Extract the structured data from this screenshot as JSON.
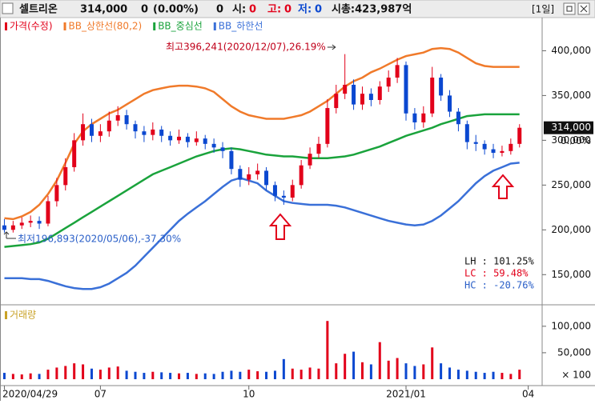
{
  "header": {
    "name": "셀트리온",
    "price": "314,000",
    "change": "0",
    "change_pct": "(0.00%)",
    "volume": "0",
    "open_label": "시:",
    "open_value": "0",
    "high_label": "고:",
    "high_value": "0",
    "low_label": "저:",
    "low_value": "0",
    "market_cap": "시총:423,987억",
    "period": "[1일]"
  },
  "chart_data": [
    {
      "type": "candlestick",
      "price_name": "가격(수정)",
      "up_color": "#e2001a",
      "down_color": "#0b48d0",
      "categories": [
        "2020/04/29",
        null,
        null,
        null,
        null,
        null,
        null,
        null,
        null,
        null,
        null,
        "07",
        null,
        null,
        null,
        null,
        null,
        null,
        null,
        null,
        null,
        null,
        null,
        null,
        null,
        null,
        null,
        null,
        "10",
        null,
        null,
        null,
        null,
        null,
        null,
        null,
        null,
        null,
        null,
        null,
        null,
        null,
        null,
        null,
        null,
        null,
        "2021/01",
        null,
        null,
        null,
        null,
        null,
        null,
        null,
        null,
        null,
        null,
        null,
        null,
        null,
        "04",
        null
      ],
      "open": [
        205000,
        200000,
        205000,
        208000,
        210000,
        207000,
        232000,
        250000,
        270000,
        300000,
        318000,
        305000,
        310000,
        322000,
        328000,
        318000,
        310000,
        306000,
        312000,
        305000,
        300000,
        304000,
        298000,
        302000,
        296000,
        292000,
        288000,
        268000,
        256000,
        262000,
        266000,
        250000,
        238000,
        236000,
        250000,
        272000,
        285000,
        296000,
        336000,
        352000,
        362000,
        340000,
        352000,
        345000,
        360000,
        370000,
        384000,
        330000,
        320000,
        330000,
        370000,
        350000,
        332000,
        318000,
        298000,
        296000,
        290000,
        286000,
        288000,
        296000,
        null,
        null
      ],
      "high": [
        212000,
        210000,
        214000,
        216000,
        215000,
        238000,
        258000,
        280000,
        308000,
        330000,
        324000,
        318000,
        332000,
        338000,
        334000,
        322000,
        316000,
        320000,
        316000,
        310000,
        312000,
        308000,
        310000,
        306000,
        302000,
        298000,
        292000,
        272000,
        270000,
        274000,
        270000,
        254000,
        244000,
        256000,
        278000,
        292000,
        304000,
        346000,
        362000,
        396241,
        368000,
        360000,
        358000,
        366000,
        378000,
        392000,
        388000,
        336000,
        338000,
        382000,
        374000,
        356000,
        336000,
        322000,
        306000,
        300000,
        296000,
        294000,
        302000,
        318000,
        null,
        null
      ],
      "low": [
        196893,
        197000,
        201000,
        203000,
        201000,
        204000,
        226000,
        244000,
        265000,
        294000,
        298000,
        298000,
        304000,
        316000,
        312000,
        302000,
        298000,
        300000,
        298000,
        294000,
        296000,
        292000,
        294000,
        290000,
        286000,
        280000,
        262000,
        248000,
        250000,
        256000,
        244000,
        232000,
        228000,
        232000,
        246000,
        268000,
        280000,
        292000,
        330000,
        346000,
        334000,
        334000,
        338000,
        340000,
        354000,
        364000,
        322000,
        312000,
        314000,
        326000,
        344000,
        326000,
        310000,
        290000,
        288000,
        284000,
        280000,
        282000,
        284000,
        292000,
        null,
        null
      ],
      "close": [
        200000,
        205000,
        208000,
        210000,
        207000,
        232000,
        250000,
        270000,
        300000,
        318000,
        305000,
        310000,
        322000,
        328000,
        318000,
        310000,
        306000,
        312000,
        305000,
        300000,
        304000,
        298000,
        302000,
        296000,
        292000,
        288000,
        268000,
        256000,
        262000,
        266000,
        250000,
        238000,
        236000,
        250000,
        272000,
        285000,
        296000,
        336000,
        352000,
        362000,
        340000,
        352000,
        345000,
        360000,
        370000,
        384000,
        330000,
        320000,
        330000,
        370000,
        350000,
        332000,
        318000,
        298000,
        296000,
        290000,
        286000,
        288000,
        296000,
        314000,
        null,
        null
      ],
      "series": [
        {
          "name": "BB_상한선(80,2)",
          "color": "#f07a2a",
          "values": [
            213000,
            212000,
            215000,
            220000,
            228000,
            240000,
            255000,
            275000,
            296000,
            310000,
            318000,
            324000,
            330000,
            334000,
            340000,
            346000,
            352000,
            356000,
            358000,
            360000,
            361000,
            361000,
            360000,
            358000,
            354000,
            346000,
            338000,
            332000,
            328000,
            326000,
            324000,
            324000,
            324000,
            326000,
            328000,
            332000,
            338000,
            344000,
            352000,
            360000,
            366000,
            370000,
            376000,
            380000,
            385000,
            390000,
            394000,
            396000,
            398000,
            402000,
            403000,
            402000,
            398000,
            392000,
            386000,
            383000,
            382000,
            382000,
            382000,
            382000,
            null,
            null
          ]
        },
        {
          "name": "BB_중심선",
          "color": "#1aa33c",
          "values": [
            181000,
            182000,
            183000,
            184000,
            186000,
            190000,
            196000,
            202000,
            208000,
            214000,
            220000,
            226000,
            232000,
            238000,
            244000,
            250000,
            256000,
            262000,
            266000,
            270000,
            274000,
            278000,
            282000,
            285000,
            288000,
            290000,
            291000,
            290000,
            288000,
            286000,
            284000,
            283000,
            282000,
            282000,
            281000,
            280000,
            280000,
            280000,
            281000,
            282000,
            284000,
            287000,
            290000,
            293000,
            297000,
            301000,
            305000,
            308000,
            311000,
            314000,
            318000,
            321000,
            324000,
            327000,
            328000,
            329000,
            329000,
            329000,
            329000,
            329000,
            null,
            null
          ]
        },
        {
          "name": "BB_하한선",
          "color": "#3a70d8",
          "values": [
            146000,
            146000,
            146000,
            145000,
            145000,
            143000,
            140000,
            137000,
            135000,
            134000,
            134000,
            136000,
            140000,
            146000,
            152000,
            160000,
            170000,
            180000,
            190000,
            200000,
            210000,
            218000,
            225000,
            232000,
            240000,
            248000,
            255000,
            258000,
            255000,
            252000,
            244000,
            238000,
            232000,
            230000,
            229000,
            228000,
            228000,
            228000,
            227000,
            225000,
            222000,
            219000,
            216000,
            213000,
            210000,
            208000,
            206000,
            205000,
            206000,
            210000,
            216000,
            224000,
            232000,
            242000,
            252000,
            260000,
            266000,
            270000,
            274000,
            275000,
            null,
            null
          ]
        }
      ],
      "ylim": [
        119000,
        437000
      ],
      "yticks": [
        {
          "value": 400000,
          "label": "400,000"
        },
        {
          "value": 350000,
          "label": "350,000"
        },
        {
          "value": 300000,
          "label": "300,000"
        },
        {
          "value": 250000,
          "label": "250,000"
        },
        {
          "value": 200000,
          "label": "200,000"
        },
        {
          "value": 150000,
          "label": "150,000"
        }
      ],
      "annotations": [
        "최고396,241(2020/12/07),26.19%",
        "최저196,893(2020/05/06),-37.30%"
      ],
      "last_price_label": "314,000",
      "last_change_label": "0.00%",
      "stats": [
        {
          "text": "LH : 101.25%",
          "color": "#111111"
        },
        {
          "text": "LC :  59.48%",
          "color": "#e2001a"
        },
        {
          "text": "HC : -20.76%",
          "color": "#2a5fc8"
        }
      ]
    },
    {
      "type": "bar",
      "title": "거래량",
      "title_color": "#c9a227",
      "values": [
        12000,
        10000,
        9000,
        11000,
        10000,
        18000,
        22000,
        25000,
        30000,
        28000,
        20000,
        18000,
        22000,
        24000,
        16000,
        14000,
        12000,
        14000,
        13000,
        12000,
        11000,
        12000,
        10000,
        11000,
        10000,
        14000,
        16000,
        14000,
        18000,
        15000,
        14000,
        16000,
        38000,
        20000,
        18000,
        22000,
        20000,
        110000,
        30000,
        48000,
        52000,
        32000,
        28000,
        70000,
        35000,
        40000,
        30000,
        25000,
        28000,
        60000,
        30000,
        22000,
        18000,
        16000,
        14000,
        12000,
        14000,
        12000,
        10000,
        18000,
        null,
        null
      ],
      "ylim": [
        0,
        136000
      ],
      "yticks": [
        {
          "value": 100000,
          "label": "100,000"
        },
        {
          "value": 50000,
          "label": "50,000"
        }
      ],
      "unit_label": "× 100"
    }
  ]
}
